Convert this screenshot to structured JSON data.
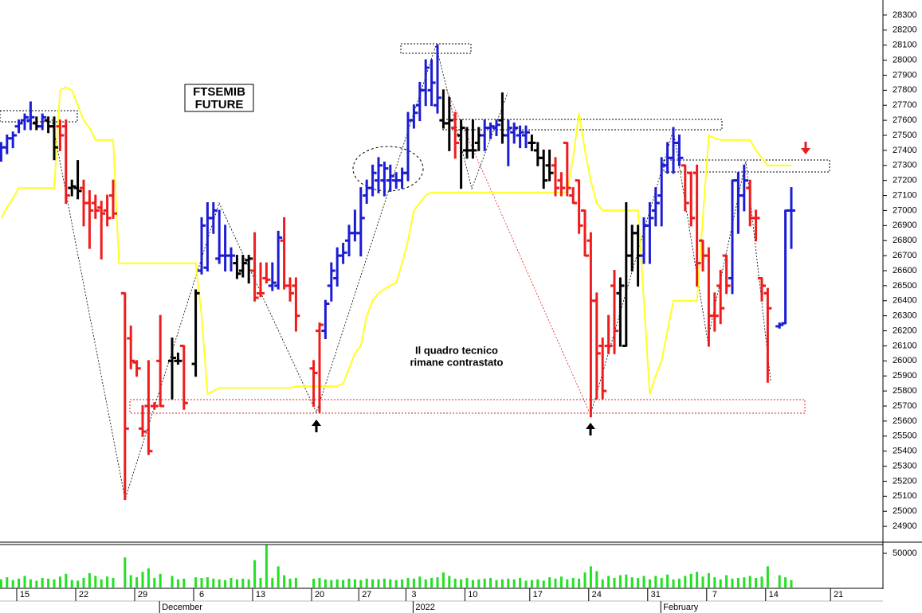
{
  "chart_data": {
    "type": "ohlc",
    "title_lines": [
      "FTSEMIB",
      "FUTURE"
    ],
    "comment_lines": [
      "Il quadro tecnico",
      "rimane contrastato"
    ],
    "ylim": [
      24800,
      28400
    ],
    "yticks": [
      24900,
      25000,
      25100,
      25200,
      25300,
      25400,
      25500,
      25600,
      25700,
      25800,
      25900,
      26000,
      26100,
      26200,
      26300,
      26400,
      26500,
      26600,
      26700,
      26800,
      26900,
      27000,
      27100,
      27200,
      27300,
      27400,
      27500,
      27600,
      27700,
      27800,
      27900,
      28000,
      28100,
      28200,
      28300
    ],
    "categories": [
      null,
      null,
      null,
      null,
      "15",
      null,
      null,
      null,
      null,
      null,
      null,
      null,
      null,
      null,
      "22",
      null,
      null,
      null,
      null,
      null,
      null,
      null,
      null,
      null,
      "29",
      null,
      null,
      null,
      null,
      null,
      null,
      null,
      null,
      null,
      "6",
      null,
      null,
      null,
      null,
      null,
      null,
      null,
      null,
      null,
      "13",
      null,
      null,
      null,
      null,
      null,
      null,
      null,
      null,
      null,
      "20",
      null,
      null,
      null,
      null,
      null,
      null,
      null,
      "27",
      null,
      null,
      null,
      null,
      null,
      null,
      null,
      "3",
      null,
      null,
      null,
      null,
      null,
      null,
      null,
      null,
      null,
      "10",
      null,
      null,
      null,
      null,
      null,
      null,
      null,
      null,
      null,
      null,
      "17",
      null,
      null,
      null,
      null,
      null,
      null,
      null,
      null,
      null,
      "24",
      null,
      null,
      null,
      null,
      null,
      null,
      null,
      null,
      null,
      "31",
      null,
      null,
      null,
      null,
      null,
      null,
      null,
      null,
      null,
      "7",
      null,
      null,
      null,
      null,
      null,
      null,
      null,
      null,
      null,
      "14",
      null,
      null,
      null,
      null,
      null,
      null,
      null,
      null,
      null,
      null,
      "21"
    ],
    "month_labels": [
      null,
      null,
      null,
      null,
      null,
      null,
      null,
      null,
      null,
      null,
      null,
      null,
      null,
      null,
      null,
      null,
      null,
      null,
      null,
      null,
      null,
      null,
      null,
      null,
      null,
      null,
      null,
      "December",
      null,
      null,
      null,
      null,
      null,
      null,
      null,
      null,
      null,
      null,
      null,
      null,
      null,
      null,
      null,
      null,
      null,
      null,
      null,
      null,
      null,
      null,
      null,
      null,
      null,
      null,
      null,
      null,
      null,
      null,
      null,
      null,
      null,
      null,
      null,
      null,
      null,
      null,
      null,
      null,
      null,
      null,
      "2022",
      null,
      null,
      null,
      null,
      null,
      null,
      null,
      null,
      null,
      null,
      null,
      null,
      null,
      null,
      null,
      null,
      null,
      null,
      null,
      null,
      null,
      null,
      null,
      null,
      null,
      null,
      null,
      null,
      null,
      null,
      null,
      null,
      null,
      null,
      null,
      null,
      null,
      null,
      null,
      null,
      null,
      "February",
      null,
      null,
      null,
      null,
      null,
      null,
      null,
      null,
      null,
      null,
      null,
      null,
      null,
      null,
      null,
      null,
      null,
      null,
      null,
      null,
      null,
      null,
      null,
      null,
      null,
      null,
      null,
      null,
      null,
      null
    ],
    "open": [
      27380,
      27420,
      27480,
      27560,
      27600,
      27600,
      27580,
      27560,
      27600,
      27560,
      27560,
      27560,
      27150,
      27150,
      27150,
      27050,
      27050,
      27020,
      27000,
      27100,
      null,
      26450,
      26150,
      25990,
      25550,
      25700,
      25700,
      26000,
      null,
      26000,
      26000,
      26100,
      null,
      25980,
      26600,
      26620,
      26950,
      26680,
      26700,
      26700,
      26650,
      26600,
      26670,
      26600,
      26450,
      26550,
      26500,
      26500,
      26800,
      26500,
      26500,
      null,
      null,
      25950,
      26200,
      26200,
      26500,
      26550,
      26700,
      26800,
      26850,
      26850,
      27100,
      27150,
      27200,
      27200,
      27200,
      27200,
      27200,
      27250,
      27600,
      27700,
      27800,
      27800,
      27700,
      27600,
      27580,
      27550,
      27500,
      27400,
      27400,
      27450,
      27500,
      27550,
      27550,
      27600,
      27500,
      27520,
      27500,
      27500,
      27450,
      27400,
      27350,
      27300,
      27300,
      27200,
      27450,
      27100,
      27200,
      27000,
      26800,
      26400,
      26100,
      26100,
      26500,
      26450,
      26100,
      26700,
      26850,
      26700,
      26900,
      27000,
      27100,
      27300,
      27350,
      27450,
      27300,
      27250,
      27250,
      26800,
      26700,
      26300,
      26500,
      26700,
      26550,
      27200,
      27100,
      27150,
      26950,
      26550,
      26450,
      null,
      26230,
      26250,
      27000,
      null,
      null,
      null,
      null,
      null,
      null,
      null,
      null
    ],
    "high": [
      27450,
      27500,
      27520,
      27600,
      27640,
      27720,
      27620,
      27640,
      27620,
      27620,
      27600,
      27600,
      27200,
      27330,
      27200,
      27130,
      27100,
      27060,
      27100,
      27200,
      null,
      26450,
      26230,
      26000,
      25700,
      26000,
      25720,
      26300,
      null,
      26150,
      26050,
      26100,
      null,
      26470,
      26950,
      27050,
      27050,
      27000,
      26900,
      26750,
      26700,
      26700,
      26700,
      26850,
      26650,
      26650,
      26650,
      26860,
      26950,
      26550,
      26550,
      null,
      null,
      26000,
      26250,
      26400,
      26650,
      26750,
      26780,
      26900,
      27000,
      27150,
      27200,
      27300,
      27350,
      27320,
      27300,
      27250,
      27280,
      27650,
      27700,
      27850,
      28000,
      28000,
      28100,
      27800,
      27750,
      27650,
      27600,
      27550,
      27600,
      27550,
      27600,
      27580,
      27600,
      27780,
      27600,
      27580,
      27560,
      27560,
      27500,
      27450,
      27400,
      27400,
      27350,
      27250,
      27450,
      27150,
      27200,
      27000,
      26850,
      26450,
      26150,
      26300,
      26600,
      26550,
      27050,
      26900,
      26900,
      26950,
      27050,
      27150,
      27350,
      27450,
      27550,
      27500,
      27300,
      27250,
      27300,
      26800,
      26750,
      26450,
      26600,
      26700,
      27200,
      27250,
      27300,
      27200,
      27000,
      26550,
      26480,
      null,
      26250,
      27000,
      27150,
      null,
      null,
      null,
      null,
      null,
      null,
      null,
      null
    ],
    "low": [
      27330,
      27380,
      27420,
      27520,
      27540,
      27540,
      27540,
      27540,
      27520,
      27340,
      27400,
      27050,
      27100,
      27080,
      26900,
      26750,
      26950,
      26680,
      26900,
      26950,
      null,
      25080,
      25950,
      25900,
      25500,
      25380,
      25680,
      25700,
      null,
      25750,
      25980,
      25680,
      null,
      25900,
      26580,
      26600,
      26850,
      26650,
      26600,
      26600,
      26550,
      26560,
      26520,
      26400,
      26430,
      26520,
      26470,
      26480,
      26480,
      26400,
      26200,
      null,
      null,
      25700,
      25660,
      26150,
      26400,
      26500,
      26650,
      26700,
      26800,
      26700,
      27050,
      27100,
      27120,
      27100,
      27130,
      27150,
      27150,
      27200,
      27550,
      27600,
      27700,
      27700,
      27650,
      27550,
      27400,
      27350,
      27150,
      27350,
      27350,
      27400,
      27400,
      27480,
      27500,
      27450,
      27300,
      27450,
      27420,
      27420,
      27400,
      27300,
      27150,
      27200,
      27100,
      27100,
      27100,
      27050,
      26850,
      26700,
      25630,
      25750,
      25750,
      26050,
      26050,
      26100,
      26100,
      26600,
      26500,
      26650,
      26650,
      26900,
      26900,
      27250,
      27250,
      27300,
      27000,
      26900,
      26500,
      26600,
      26100,
      26200,
      26250,
      26450,
      26450,
      26850,
      27000,
      26900,
      26800,
      26400,
      25860,
      null,
      26220,
      26250,
      26750,
      null,
      null,
      null,
      null,
      null,
      null,
      null,
      null
    ],
    "close": [
      27420,
      27480,
      27500,
      27580,
      27620,
      27620,
      27560,
      27620,
      27560,
      27420,
      27500,
      27100,
      27160,
      27130,
      27050,
      27000,
      27000,
      26980,
      26950,
      26980,
      null,
      25550,
      26000,
      25950,
      25530,
      25400,
      25700,
      25700,
      null,
      26020,
      26000,
      25720,
      null,
      26450,
      26900,
      26950,
      27000,
      26700,
      26700,
      26700,
      26580,
      26650,
      26680,
      26420,
      26450,
      26540,
      26520,
      26820,
      26500,
      26450,
      26300,
      null,
      null,
      25920,
      26240,
      26380,
      26600,
      26700,
      26720,
      26850,
      26850,
      26950,
      27150,
      27250,
      27300,
      27280,
      27230,
      27200,
      27250,
      27600,
      27650,
      27800,
      27950,
      27850,
      27750,
      27580,
      27600,
      27450,
      27550,
      27400,
      27400,
      27500,
      27550,
      27560,
      27570,
      27500,
      27550,
      27550,
      27520,
      27520,
      27450,
      27350,
      27200,
      27250,
      27150,
      27150,
      27150,
      27050,
      26900,
      26700,
      26400,
      26050,
      25800,
      26100,
      26200,
      26500,
      26700,
      26850,
      26700,
      26900,
      26950,
      27050,
      27300,
      27350,
      27450,
      27350,
      27050,
      26950,
      26650,
      26700,
      26300,
      26300,
      26350,
      26500,
      27200,
      27100,
      27200,
      26950,
      26950,
      26500,
      26350,
      null,
      26240,
      27000,
      27000,
      null,
      null,
      null,
      null,
      null,
      null,
      null,
      null
    ],
    "bar_colors": [
      "#1c1cd4",
      "#1c1cd4",
      "#1c1cd4",
      "#1c1cd4",
      "#1c1cd4",
      "#1c1cd4",
      "#000000",
      "#1c1cd4",
      "#000000",
      "#000000",
      "#ee1c1c",
      "#ee1c1c",
      "#000000",
      "#000000",
      "#ee1c1c",
      "#ee1c1c",
      "#ee1c1c",
      "#ee1c1c",
      "#ee1c1c",
      "#ee1c1c",
      null,
      "#ee1c1c",
      "#ee1c1c",
      "#ee1c1c",
      "#ee1c1c",
      "#ee1c1c",
      "#ee1c1c",
      "#ee1c1c",
      null,
      "#000000",
      "#000000",
      "#ee1c1c",
      null,
      "#000000",
      "#1c1cd4",
      "#1c1cd4",
      "#1c1cd4",
      "#1c1cd4",
      "#1c1cd4",
      "#1c1cd4",
      "#000000",
      "#000000",
      "#000000",
      "#ee1c1c",
      "#ee1c1c",
      "#ee1c1c",
      "#1c1cd4",
      "#1c1cd4",
      "#ee1c1c",
      "#ee1c1c",
      "#ee1c1c",
      null,
      null,
      "#ee1c1c",
      "#ee1c1c",
      "#1c1cd4",
      "#1c1cd4",
      "#1c1cd4",
      "#1c1cd4",
      "#1c1cd4",
      "#1c1cd4",
      "#1c1cd4",
      "#1c1cd4",
      "#1c1cd4",
      "#1c1cd4",
      "#1c1cd4",
      "#1c1cd4",
      "#1c1cd4",
      "#1c1cd4",
      "#1c1cd4",
      "#1c1cd4",
      "#1c1cd4",
      "#1c1cd4",
      "#1c1cd4",
      "#1c1cd4",
      "#000000",
      "#000000",
      "#ee1c1c",
      "#000000",
      "#000000",
      "#000000",
      "#000000",
      "#1c1cd4",
      "#1c1cd4",
      "#1c1cd4",
      "#000000",
      "#1c1cd4",
      "#1c1cd4",
      "#1c1cd4",
      "#1c1cd4",
      "#000000",
      "#000000",
      "#000000",
      "#000000",
      "#ee1c1c",
      "#ee1c1c",
      "#ee1c1c",
      "#ee1c1c",
      "#ee1c1c",
      "#ee1c1c",
      "#ee1c1c",
      "#ee1c1c",
      "#ee1c1c",
      "#ee1c1c",
      "#ee1c1c",
      "#000000",
      "#000000",
      "#000000",
      "#000000",
      "#1c1cd4",
      "#1c1cd4",
      "#1c1cd4",
      "#1c1cd4",
      "#1c1cd4",
      "#1c1cd4",
      "#1c1cd4",
      "#ee1c1c",
      "#ee1c1c",
      "#ee1c1c",
      "#ee1c1c",
      "#ee1c1c",
      "#ee1c1c",
      "#ee1c1c",
      "#ee1c1c",
      "#1c1cd4",
      "#1c1cd4",
      "#1c1cd4",
      "#ee1c1c",
      "#ee1c1c",
      "#ee1c1c",
      "#ee1c1c",
      null,
      "#1c1cd4",
      "#1c1cd4",
      "#1c1cd4",
      null,
      null,
      null,
      null,
      null,
      null,
      null,
      null
    ],
    "overlay": {
      "color": "#ffff22",
      "values": [
        26950,
        27020,
        27080,
        27150,
        27150,
        27150,
        27150,
        27150,
        27150,
        27150,
        27800,
        27820,
        27800,
        27700,
        27600,
        27550,
        27470,
        27470,
        27470,
        27470,
        26650,
        26650,
        26650,
        26650,
        26650,
        26650,
        26650,
        26650,
        26650,
        26650,
        26650,
        26650,
        26650,
        26650,
        26300,
        25780,
        25800,
        25820,
        25820,
        25820,
        25820,
        25820,
        25820,
        25820,
        25820,
        25820,
        25820,
        25820,
        25820,
        25820,
        25830,
        25830,
        25830,
        25830,
        25830,
        25830,
        25830,
        25830,
        25850,
        25950,
        26050,
        26100,
        26300,
        26400,
        26450,
        26480,
        26500,
        26520,
        26650,
        26800,
        27000,
        27050,
        27100,
        27120,
        27120,
        27120,
        27120,
        27120,
        27120,
        27120,
        27120,
        27120,
        27120,
        27120,
        27120,
        27120,
        27120,
        27120,
        27120,
        27120,
        27120,
        27120,
        27120,
        27120,
        27120,
        27120,
        27120,
        27350,
        27650,
        27400,
        27200,
        27050,
        27000,
        27000,
        27000,
        27000,
        27000,
        27000,
        27000,
        26400,
        25780,
        25900,
        26000,
        26200,
        26400,
        26400,
        26400,
        26400,
        26400,
        26950,
        27500,
        27480,
        27470,
        27470,
        27470,
        27470,
        27470,
        27470,
        27400,
        27350,
        27300,
        27300,
        27300,
        27300,
        27300,
        null,
        null,
        null,
        null,
        null,
        null,
        null,
        null
      ]
    },
    "volume": {
      "color": "#22e022",
      "ylim": [
        0,
        64000
      ],
      "yticks": [
        50000
      ],
      "values": [
        12000,
        15000,
        11000,
        13000,
        17000,
        12000,
        10000,
        14000,
        13000,
        12000,
        16000,
        20000,
        11000,
        10000,
        14000,
        21000,
        17000,
        12000,
        16000,
        14000,
        null,
        44000,
        18000,
        15000,
        23000,
        28000,
        14000,
        20000,
        null,
        17000,
        12000,
        13000,
        null,
        15000,
        14000,
        15000,
        13000,
        12000,
        11000,
        14000,
        12000,
        13000,
        12000,
        40000,
        14000,
        62000,
        14000,
        31000,
        18000,
        13000,
        14000,
        null,
        null,
        13000,
        14000,
        12000,
        11000,
        12000,
        11000,
        13000,
        12000,
        11000,
        13000,
        12000,
        12000,
        13000,
        12000,
        11000,
        12000,
        14000,
        13000,
        16000,
        12000,
        14000,
        15000,
        22000,
        17000,
        13000,
        12000,
        14000,
        11000,
        12000,
        13000,
        14000,
        11000,
        12000,
        13000,
        12000,
        14000,
        10000,
        11000,
        12000,
        10000,
        15000,
        13000,
        16000,
        12000,
        14000,
        13000,
        22000,
        31000,
        24000,
        12000,
        17000,
        14000,
        18000,
        19000,
        15000,
        14000,
        17000,
        12000,
        17000,
        14000,
        19000,
        12000,
        13000,
        17000,
        20000,
        23000,
        16000,
        21000,
        15000,
        12000,
        18000,
        13000,
        14000,
        15000,
        17000,
        14000,
        16000,
        31000,
        null,
        18000,
        15000,
        11000,
        null,
        null,
        null,
        null,
        null,
        null,
        null,
        null
      ]
    }
  }
}
